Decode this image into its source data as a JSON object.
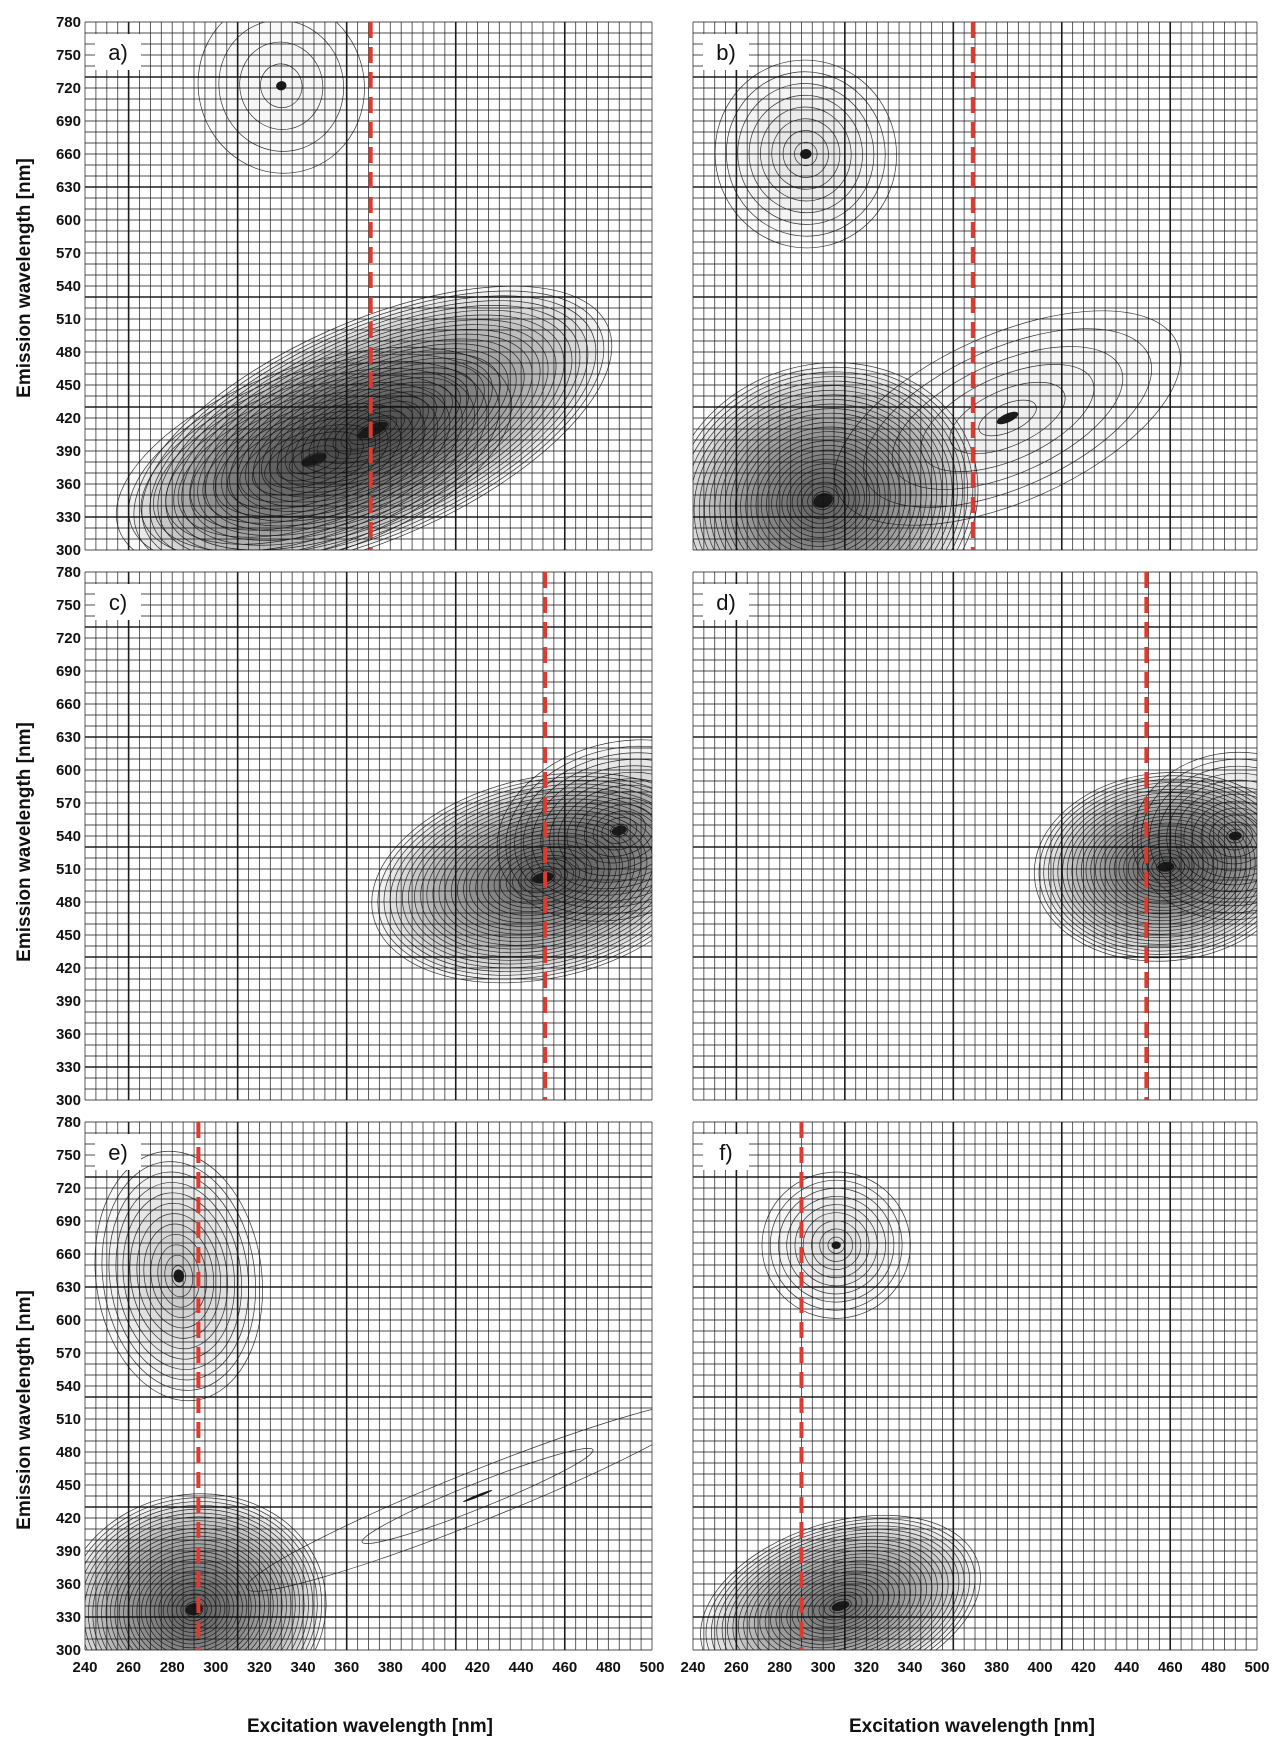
{
  "figure": {
    "xlabel_left": "Excitation wavelength [nm]",
    "xlabel_right": "Excitation wavelength  [nm]",
    "ylabel": "Emission  wavelength [nm]",
    "colors": {
      "marker": "#e03a2e",
      "contour": "#111111",
      "fill": "#1a1a1a",
      "grid": "#111111"
    }
  },
  "chart_data": [
    {
      "type": "heatmap",
      "label": "a)",
      "xlim": [
        240,
        500
      ],
      "ylim": [
        300,
        780
      ],
      "x_ticks": [],
      "y_ticks": [
        780,
        750,
        720,
        690,
        660,
        630,
        600,
        570,
        540,
        510,
        480,
        450,
        420,
        390,
        360,
        330,
        300
      ],
      "excitation_marker": 371,
      "peaks": [
        {
          "ex": 372,
          "em": 409,
          "sx": 62,
          "sy": 52,
          "rot": 0.5,
          "amp": 1.0,
          "levels": 30
        },
        {
          "ex": 345,
          "em": 382,
          "sx": 50,
          "sy": 45,
          "rot": 0.4,
          "amp": 0.85,
          "levels": 16
        },
        {
          "ex": 330,
          "em": 722,
          "sx": 20,
          "sy": 42,
          "rot": 0.3,
          "amp": 0.35,
          "levels": 4
        }
      ]
    },
    {
      "type": "heatmap",
      "label": "b)",
      "xlim": [
        240,
        500
      ],
      "ylim": [
        300,
        780
      ],
      "x_ticks": [],
      "y_ticks": [],
      "excitation_marker": 369,
      "peaks": [
        {
          "ex": 300,
          "em": 345,
          "sx": 38,
          "sy": 65,
          "rot": 0.35,
          "amp": 1.0,
          "levels": 30
        },
        {
          "ex": 385,
          "em": 420,
          "sx": 45,
          "sy": 40,
          "rot": 0.5,
          "amp": 0.35,
          "levels": 6
        },
        {
          "ex": 292,
          "em": 660,
          "sx": 22,
          "sy": 45,
          "rot": 0.2,
          "amp": 0.6,
          "levels": 8
        }
      ]
    },
    {
      "type": "heatmap",
      "label": "c)",
      "xlim": [
        240,
        500
      ],
      "ylim": [
        300,
        780
      ],
      "x_ticks": [],
      "y_ticks": [
        780,
        750,
        720,
        690,
        660,
        630,
        600,
        570,
        540,
        510,
        480,
        450,
        420,
        390,
        360,
        330,
        300
      ],
      "excitation_marker": 451,
      "peaks": [
        {
          "ex": 450,
          "em": 502,
          "sx": 42,
          "sy": 48,
          "rot": 0.25,
          "amp": 1.0,
          "levels": 28
        },
        {
          "ex": 485,
          "em": 545,
          "sx": 30,
          "sy": 42,
          "rot": 0.3,
          "amp": 0.75,
          "levels": 14
        }
      ]
    },
    {
      "type": "heatmap",
      "label": "d)",
      "xlim": [
        240,
        500
      ],
      "ylim": [
        300,
        780
      ],
      "x_ticks": [],
      "y_ticks": [],
      "excitation_marker": 449,
      "peaks": [
        {
          "ex": 458,
          "em": 512,
          "sx": 32,
          "sy": 45,
          "rot": 0.1,
          "amp": 1.0,
          "levels": 28
        },
        {
          "ex": 490,
          "em": 540,
          "sx": 25,
          "sy": 40,
          "rot": 0.1,
          "amp": 0.7,
          "levels": 12
        }
      ]
    },
    {
      "type": "heatmap",
      "label": "e)",
      "xlim": [
        240,
        500
      ],
      "ylim": [
        300,
        780
      ],
      "x_ticks": [
        240,
        260,
        280,
        300,
        320,
        340,
        360,
        380,
        400,
        420,
        440,
        460,
        480,
        500
      ],
      "y_ticks": [
        780,
        750,
        720,
        690,
        660,
        630,
        600,
        570,
        540,
        510,
        480,
        450,
        420,
        390,
        360,
        330,
        300
      ],
      "excitation_marker": 292,
      "peaks": [
        {
          "ex": 290,
          "em": 337,
          "sx": 32,
          "sy": 55,
          "rot": 0.2,
          "amp": 1.0,
          "levels": 30
        },
        {
          "ex": 283,
          "em": 640,
          "sx": 20,
          "sy": 60,
          "rot": 0.15,
          "amp": 0.65,
          "levels": 12
        },
        {
          "ex": 420,
          "em": 440,
          "sx": 60,
          "sy": 12,
          "rot": 0.45,
          "amp": 0.2,
          "levels": 2
        }
      ]
    },
    {
      "type": "heatmap",
      "label": "f)",
      "xlim": [
        240,
        500
      ],
      "ylim": [
        300,
        780
      ],
      "x_ticks": [
        240,
        260,
        280,
        300,
        320,
        340,
        360,
        380,
        400,
        420,
        440,
        460,
        480,
        500
      ],
      "y_ticks": [],
      "excitation_marker": 290,
      "peaks": [
        {
          "ex": 308,
          "em": 340,
          "sx": 35,
          "sy": 40,
          "rot": 0.35,
          "amp": 1.0,
          "levels": 26
        },
        {
          "ex": 306,
          "em": 668,
          "sx": 18,
          "sy": 35,
          "rot": 0.1,
          "amp": 0.55,
          "levels": 9
        }
      ]
    }
  ]
}
